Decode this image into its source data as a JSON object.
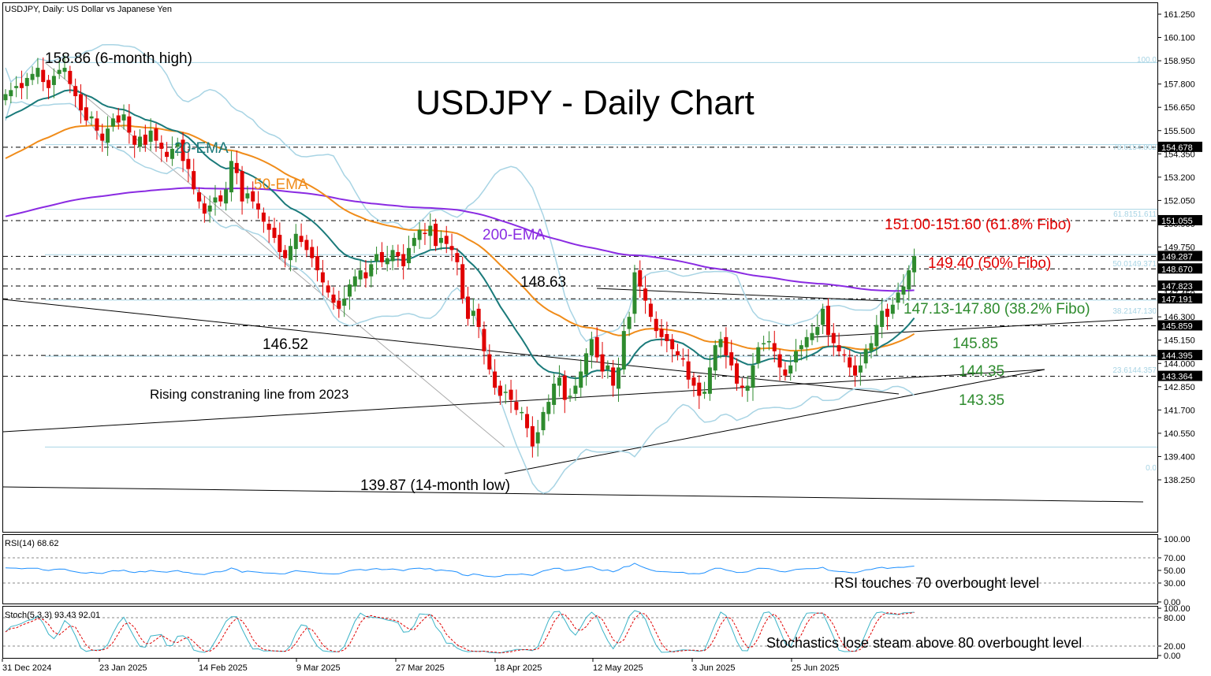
{
  "window": {
    "header": "USDJPY, Daily:  US Dollar vs Japanese Yen"
  },
  "main": {
    "title": "USDJPY - Daily Chart",
    "colors": {
      "bull": "#2e8b2e",
      "bear": "#e00000",
      "ema20": "#1a7a7a",
      "ema50": "#f08c1a",
      "ema200": "#8a2be2",
      "bollinger": "#a8d4e4",
      "grid": "#000000"
    },
    "annotations": {
      "high": "158.86 (6-month high)",
      "ema20": "20-EMA",
      "ema50": "50-EMA",
      "ema200": "200-EMA",
      "fibo618": "151.00-151.60 (61.8% Fibo)",
      "fibo50": "149.40 (50% Fibo)",
      "p14863": "148.63",
      "fibo382": "147.13-147.80 (38.2% Fibo)",
      "p14652": "146.52",
      "p14585": "145.85",
      "p14435": "144.35",
      "p14335": "143.35",
      "rising": "Rising constraning line from 2023",
      "low": "139.87 (14-month low)"
    },
    "fib_labels": {
      "f100": "100.0",
      "f786": "78.6154.802",
      "f618": "61.8151.611",
      "f50": "50.0149.371",
      "f382": "38.2147.130",
      "f236": "23.6144.357",
      "f0": "0.0"
    },
    "y_ticks": [
      "161.250",
      "160.100",
      "158.950",
      "157.800",
      "156.650",
      "155.500",
      "154.350",
      "153.200",
      "152.050",
      "150.900",
      "149.750",
      "148.600",
      "147.450",
      "146.300",
      "145.150",
      "144.000",
      "142.850",
      "141.700",
      "140.550",
      "139.400",
      "138.250"
    ],
    "price_boxes": [
      "154.678",
      "151.055",
      "149.287",
      "148.670",
      "147.823",
      "147.191",
      "145.859",
      "144.395",
      "143.364"
    ],
    "x_ticks": [
      "31 Dec 2024",
      "23 Jan 2025",
      "14 Feb 2025",
      "9 Mar 2025",
      "27 Mar 2025",
      "18 Apr 2025",
      "12 May 2025",
      "3 Jun 2025",
      "25 Jun 2025"
    ]
  },
  "rsi": {
    "label": "RSI(14) 68.62",
    "note": "RSI touches 70 overbought level",
    "ticks": [
      "100.00",
      "70.00",
      "50.00",
      "30.00",
      "0.00"
    ]
  },
  "stoch": {
    "label": "Stoch(5,3,3) 93.43 92.01",
    "note": "Stochastics lose steam above 80 overbought level",
    "ticks": [
      "100.00",
      "80.00",
      "20.00",
      "0.00"
    ]
  },
  "chart_data": {
    "type": "candlestick",
    "symbol": "USDJPY",
    "timeframe": "Daily",
    "ylim": [
      137.8,
      161.7
    ],
    "closes": [
      157.3,
      157.5,
      157.7,
      157.6,
      158.1,
      158.3,
      158.6,
      157.9,
      157.6,
      158.2,
      158.5,
      158.6,
      157.8,
      157.2,
      156.5,
      156.0,
      156.2,
      155.5,
      155.0,
      155.6,
      156.1,
      155.9,
      156.3,
      155.4,
      154.8,
      155.2,
      154.8,
      155.5,
      155.0,
      154.6,
      154.2,
      154.6,
      154.9,
      154.0,
      153.6,
      152.6,
      152.0,
      151.4,
      151.8,
      152.2,
      152.0,
      152.6,
      154.0,
      153.4,
      152.0,
      152.4,
      152.0,
      151.6,
      151.0,
      150.6,
      150.2,
      149.5,
      149.2,
      149.8,
      150.4,
      150.0,
      149.6,
      149.2,
      148.6,
      148.0,
      147.5,
      147.0,
      146.7,
      147.2,
      147.9,
      148.3,
      148.6,
      148.2,
      148.9,
      149.4,
      149.0,
      149.2,
      149.6,
      149.3,
      148.8,
      149.7,
      150.2,
      150.6,
      150.4,
      150.8,
      149.8,
      150.2,
      149.9,
      149.6,
      149.0,
      147.2,
      146.2,
      146.6,
      145.8,
      144.6,
      143.7,
      142.8,
      142.4,
      142.6,
      142.2,
      141.7,
      141.6,
      140.8,
      139.9,
      140.6,
      141.6,
      142.1,
      143.0,
      143.3,
      142.2,
      142.4,
      142.9,
      143.6,
      144.5,
      145.2,
      144.3,
      143.6,
      143.9,
      142.9,
      143.8,
      145.6,
      146.3,
      148.5,
      147.8,
      147.1,
      146.3,
      145.6,
      145.3,
      145.1,
      144.7,
      144.4,
      144.2,
      143.2,
      142.9,
      142.4,
      142.6,
      143.8,
      144.9,
      145.2,
      144.4,
      143.9,
      143.0,
      142.8,
      142.9,
      143.9,
      144.8,
      145.0,
      145.1,
      144.6,
      143.8,
      143.4,
      143.9,
      144.6,
      144.9,
      145.3,
      145.5,
      145.8,
      146.7,
      145.4,
      145.0,
      144.6,
      144.4,
      143.8,
      143.4,
      143.9,
      144.7,
      145.0,
      145.9,
      146.6,
      146.3,
      146.9,
      147.5,
      147.8,
      148.6,
      149.3
    ]
  }
}
